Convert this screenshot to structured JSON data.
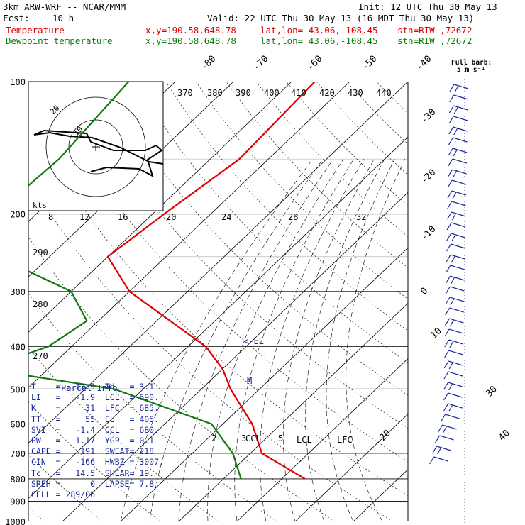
{
  "header": {
    "model": "3km ARW-WRF -- NCAR/MMM",
    "fcst_label": "Fcst:",
    "fcst_value": "10 h",
    "init": "Init: 12 UTC Thu 30 May 13",
    "valid": "Valid: 22 UTC Thu 30 May 13 (16 MDT Thu 30 May 13)"
  },
  "legend": {
    "temperature": {
      "label": "Temperature",
      "xy": "x,y=190.58,648.78",
      "latlon": "lat,lon= 43.06,-108.45",
      "stn": "stn=RIW ,72672",
      "color": "#e00000"
    },
    "dewpoint": {
      "label": "Dewpoint temperature",
      "xy": "x,y=190.58,648.78",
      "latlon": "lat,lon= 43.06,-108.45",
      "stn": "stn=RIW ,72672",
      "color": "#107a10"
    }
  },
  "full_barb": "Full barb:",
  "full_barb_units": "5 m s⁻¹",
  "parcel": {
    "title": "Parcel Info",
    "rows": [
      [
        "T",
        "13.9",
        "Td",
        "3.1"
      ],
      [
        "LI",
        "-1.9",
        "LCL",
        "690."
      ],
      [
        "K",
        "31",
        "LFC",
        "685."
      ],
      [
        "TT",
        "55",
        "EL",
        "405."
      ],
      [
        "SVI",
        "-1.4",
        "CCL",
        "680."
      ],
      [
        "PW",
        "1.17",
        "YGP",
        "0.1"
      ],
      [
        "CAPE",
        "191",
        "SWEAT",
        "218"
      ],
      [
        "CIN",
        "-166",
        "HWBZ",
        "3007."
      ],
      [
        "Tc",
        "14.5",
        "SHEAR",
        "19."
      ],
      [
        "SREH",
        "0",
        "LAPSE",
        "7.8"
      ],
      [
        "CELL",
        "289/06",
        "",
        ""
      ]
    ]
  },
  "chart_data": {
    "type": "line",
    "title": "",
    "pressure_ticks": [
      100,
      200,
      300,
      400,
      500,
      600,
      700,
      800,
      900,
      1000
    ],
    "top_temp_labels": [
      "-80",
      "-70",
      "-60",
      "-50",
      "-40"
    ],
    "right_temp_labels": [
      "-30",
      "-20",
      "-10",
      "0",
      "10",
      "20",
      "30",
      "40"
    ],
    "theta_labels": [
      "370",
      "380",
      "390",
      "400",
      "410",
      "420",
      "430",
      "440",
      "290",
      "280",
      "270"
    ],
    "mixing_ratio_labels": [
      "2",
      "3",
      "5",
      "8",
      "12",
      "16",
      "20",
      "24",
      "28",
      "32"
    ],
    "markers": [
      "<-EL",
      "M",
      "CCL",
      "LCL",
      "LFC"
    ],
    "hodograph": {
      "units": "kts",
      "rings": [
        "10",
        "20"
      ]
    },
    "series": [
      {
        "name": "Temperature",
        "color": "#e00000",
        "points": [
          [
            100,
            -56
          ],
          [
            150,
            -55
          ],
          [
            200,
            -58
          ],
          [
            250,
            -60
          ],
          [
            300,
            -50
          ],
          [
            400,
            -27
          ],
          [
            450,
            -20
          ],
          [
            500,
            -15
          ],
          [
            600,
            -5
          ],
          [
            700,
            2
          ],
          [
            800,
            14
          ]
        ]
      },
      {
        "name": "Dewpoint temperature",
        "color": "#107a10",
        "points": [
          [
            100,
            -88
          ],
          [
            150,
            -86
          ],
          [
            200,
            -87
          ],
          [
            250,
            -79
          ],
          [
            300,
            -60
          ],
          [
            350,
            -52
          ],
          [
            400,
            -54
          ],
          [
            450,
            -61
          ],
          [
            500,
            -35
          ],
          [
            600,
            -12
          ],
          [
            700,
            -3
          ],
          [
            800,
            3
          ]
        ]
      }
    ]
  }
}
